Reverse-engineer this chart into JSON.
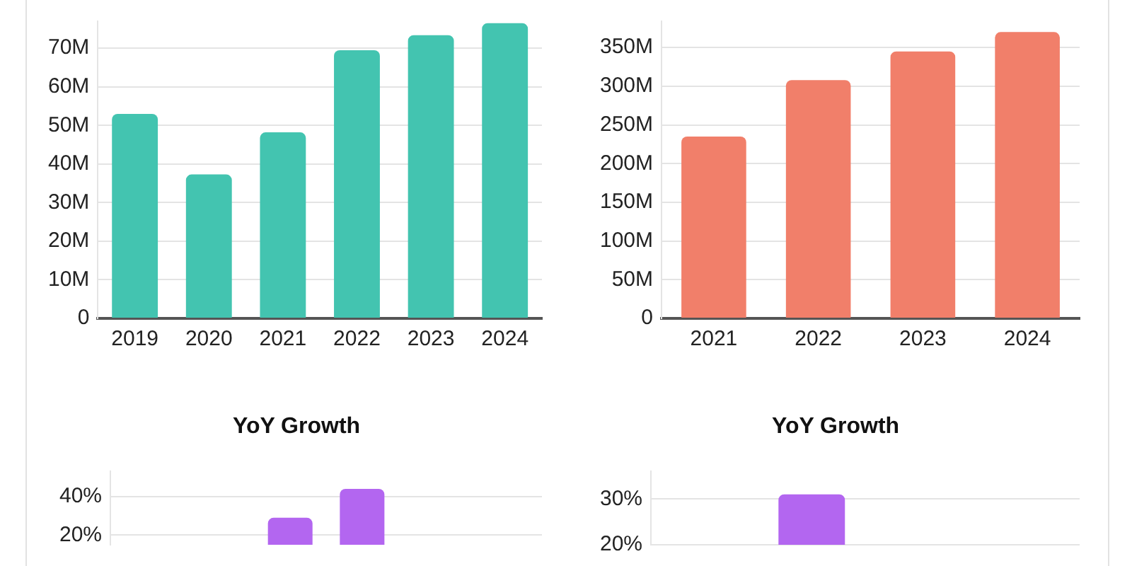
{
  "chart_data": [
    {
      "type": "bar",
      "categories": [
        "2019",
        "2020",
        "2021",
        "2022",
        "2023",
        "2024"
      ],
      "values": [
        53,
        37.3,
        48.2,
        69.5,
        73.4,
        76.5
      ],
      "color": "#43c4b0",
      "ylim": [
        0,
        77
      ],
      "yticks": [
        {
          "value": 0,
          "label": "0"
        },
        {
          "value": 10,
          "label": "10M"
        },
        {
          "value": 20,
          "label": "20M"
        },
        {
          "value": 30,
          "label": "30M"
        },
        {
          "value": 40,
          "label": "40M"
        },
        {
          "value": 50,
          "label": "50M"
        },
        {
          "value": 60,
          "label": "60M"
        },
        {
          "value": 70,
          "label": "70M"
        }
      ],
      "grid": "y"
    },
    {
      "type": "bar",
      "categories": [
        "2021",
        "2022",
        "2023",
        "2024"
      ],
      "values": [
        235,
        308,
        345,
        370
      ],
      "color": "#f17f6a",
      "ylim": [
        0,
        384
      ],
      "yticks": [
        {
          "value": 0,
          "label": "0"
        },
        {
          "value": 50,
          "label": "50M"
        },
        {
          "value": 100,
          "label": "100M"
        },
        {
          "value": 150,
          "label": "150M"
        },
        {
          "value": 200,
          "label": "200M"
        },
        {
          "value": 250,
          "label": "250M"
        },
        {
          "value": 300,
          "label": "300M"
        },
        {
          "value": 350,
          "label": "350M"
        }
      ],
      "grid": "y"
    },
    {
      "type": "bar",
      "title": "YoY Growth",
      "categories": [
        null,
        null,
        null,
        null,
        null,
        null
      ],
      "values": [
        null,
        null,
        29,
        44,
        null,
        null
      ],
      "color": "#b366f0",
      "ylim": [
        15,
        53
      ],
      "yticks": [
        {
          "value": 20,
          "label": "20%"
        },
        {
          "value": 40,
          "label": "40%"
        }
      ],
      "grid": "y",
      "tick_labels": "y"
    },
    {
      "type": "bar",
      "title": "YoY Growth",
      "categories": [
        null,
        null,
        null,
        null
      ],
      "values": [
        null,
        31,
        null,
        null
      ],
      "color": "#b366f0",
      "ylim": [
        20,
        36
      ],
      "yticks": [
        {
          "value": 20,
          "label": "20%"
        },
        {
          "value": 30,
          "label": "30%"
        }
      ],
      "grid": "y",
      "tick_labels": "y"
    }
  ]
}
